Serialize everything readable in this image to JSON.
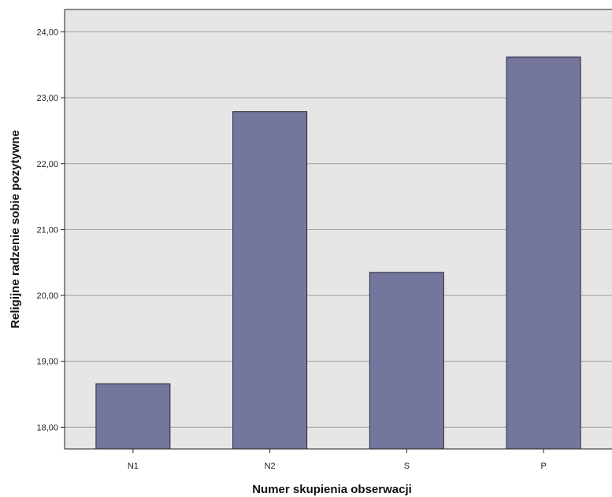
{
  "chart_data": {
    "type": "bar",
    "title": "",
    "xlabel": "Numer skupienia obserwacji",
    "ylabel": "Religijne radzenie sobie pozytywne",
    "categories": [
      "N1",
      "N2",
      "S",
      "P"
    ],
    "values": [
      18.66,
      22.79,
      20.35,
      23.62
    ],
    "ylim": [
      17.67,
      24.34
    ],
    "yticks": [
      "18,00",
      "19,00",
      "20,00",
      "21,00",
      "22,00",
      "23,00",
      "24,00"
    ],
    "ytick_values": [
      18,
      19,
      20,
      21,
      22,
      23,
      24
    ],
    "grid": true,
    "colors": {
      "bar": "#75769e",
      "bar_edge": "#2a2a3a",
      "plot_bg": "#e6e6e6",
      "grid": "#a8a8a8"
    }
  }
}
